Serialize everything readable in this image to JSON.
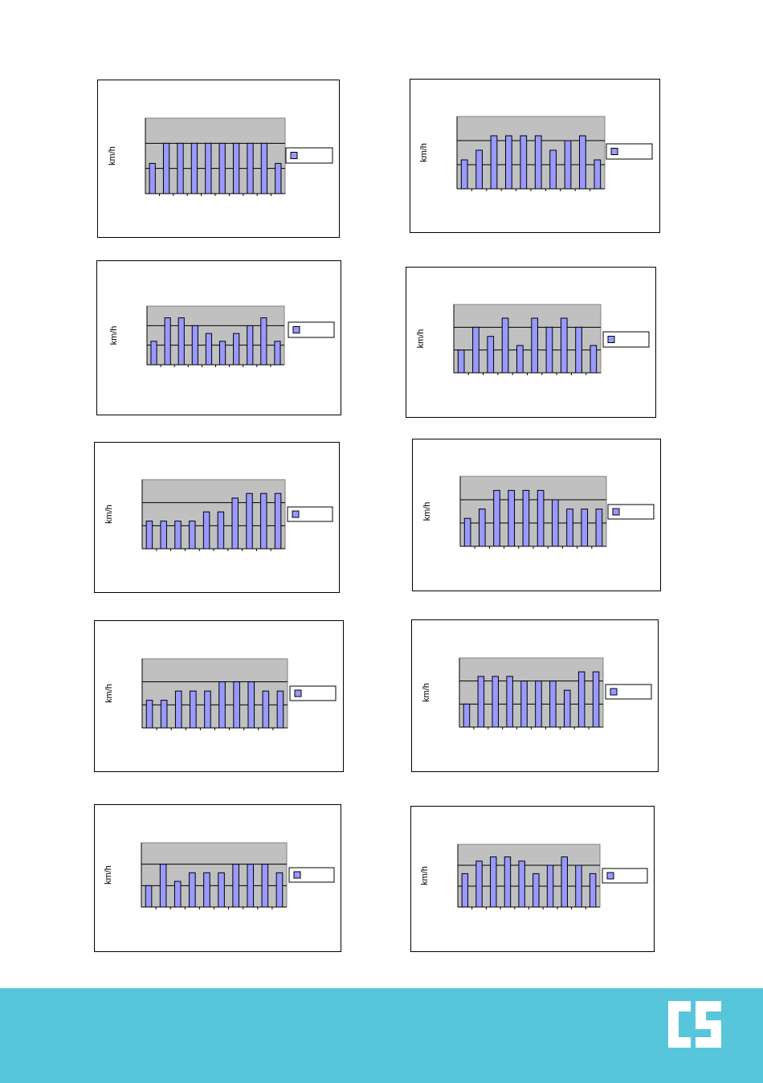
{
  "page": {
    "background": "#ffffff",
    "footer_color": "#58c6da",
    "logo_icon": "cs-logo-icon",
    "logo_text": "CS"
  },
  "style": {
    "plot_bg": "#c0c0c0",
    "bar_fill": "#9999ff",
    "bar_stroke": "#000000"
  },
  "chart_data": [
    {
      "type": "bar",
      "ylabel": "km/h",
      "legend": [
        ""
      ],
      "legend_placement": "right",
      "grid": true,
      "ylim": [
        0,
        3
      ],
      "values": [
        1.2,
        2.0,
        2.0,
        2.0,
        2.0,
        2.0,
        2.0,
        2.0,
        2.0,
        1.2
      ]
    },
    {
      "type": "bar",
      "ylabel": "km/h",
      "legend": [
        ""
      ],
      "legend_placement": "right",
      "grid": true,
      "ylim": [
        0,
        3
      ],
      "values": [
        1.2,
        1.6,
        2.2,
        2.2,
        2.2,
        2.2,
        1.6,
        2.0,
        2.2,
        1.2
      ]
    },
    {
      "type": "bar",
      "ylabel": "km/h",
      "legend": [
        ""
      ],
      "legend_placement": "right",
      "grid": true,
      "ylim": [
        0,
        3
      ],
      "values": [
        1.2,
        2.4,
        2.4,
        2.0,
        1.6,
        1.2,
        1.6,
        2.0,
        2.4,
        1.2
      ]
    },
    {
      "type": "bar",
      "ylabel": "km/h",
      "legend": [
        ""
      ],
      "legend_placement": "right",
      "grid": true,
      "ylim": [
        0,
        3
      ],
      "values": [
        1.0,
        2.0,
        1.6,
        2.4,
        1.2,
        2.4,
        2.0,
        2.4,
        2.0,
        1.2
      ]
    },
    {
      "type": "bar",
      "ylabel": "km/h",
      "legend": [
        ""
      ],
      "legend_placement": "right",
      "grid": true,
      "ylim": [
        0,
        3
      ],
      "values": [
        1.2,
        1.2,
        1.2,
        1.2,
        1.6,
        1.6,
        2.2,
        2.4,
        2.4,
        2.4
      ]
    },
    {
      "type": "bar",
      "ylabel": "km/h",
      "legend": [
        ""
      ],
      "legend_placement": "right",
      "grid": true,
      "ylim": [
        0,
        3
      ],
      "values": [
        1.2,
        1.6,
        2.4,
        2.4,
        2.4,
        2.4,
        2.0,
        1.6,
        1.6,
        1.6
      ]
    },
    {
      "type": "bar",
      "ylabel": "km/h",
      "legend": [
        ""
      ],
      "legend_placement": "right",
      "grid": true,
      "ylim": [
        0,
        3
      ],
      "values": [
        1.2,
        1.2,
        1.6,
        1.6,
        1.6,
        2.0,
        2.0,
        2.0,
        1.6,
        1.6
      ]
    },
    {
      "type": "bar",
      "ylabel": "km/h",
      "legend": [
        ""
      ],
      "legend_placement": "right",
      "grid": true,
      "ylim": [
        0,
        3
      ],
      "values": [
        1.0,
        2.2,
        2.2,
        2.2,
        2.0,
        2.0,
        2.0,
        1.6,
        2.4,
        2.4
      ]
    },
    {
      "type": "bar",
      "ylabel": "km/h",
      "legend": [
        ""
      ],
      "legend_placement": "right",
      "grid": true,
      "ylim": [
        0,
        3
      ],
      "values": [
        1.0,
        2.0,
        1.2,
        1.6,
        1.6,
        1.6,
        2.0,
        2.0,
        2.0,
        1.6
      ]
    },
    {
      "type": "bar",
      "ylabel": "km/h",
      "legend": [
        ""
      ],
      "legend_placement": "right",
      "grid": true,
      "ylim": [
        0,
        3
      ],
      "values": [
        1.6,
        2.2,
        2.4,
        2.4,
        2.2,
        1.6,
        2.0,
        2.4,
        2.0,
        1.6
      ]
    }
  ]
}
